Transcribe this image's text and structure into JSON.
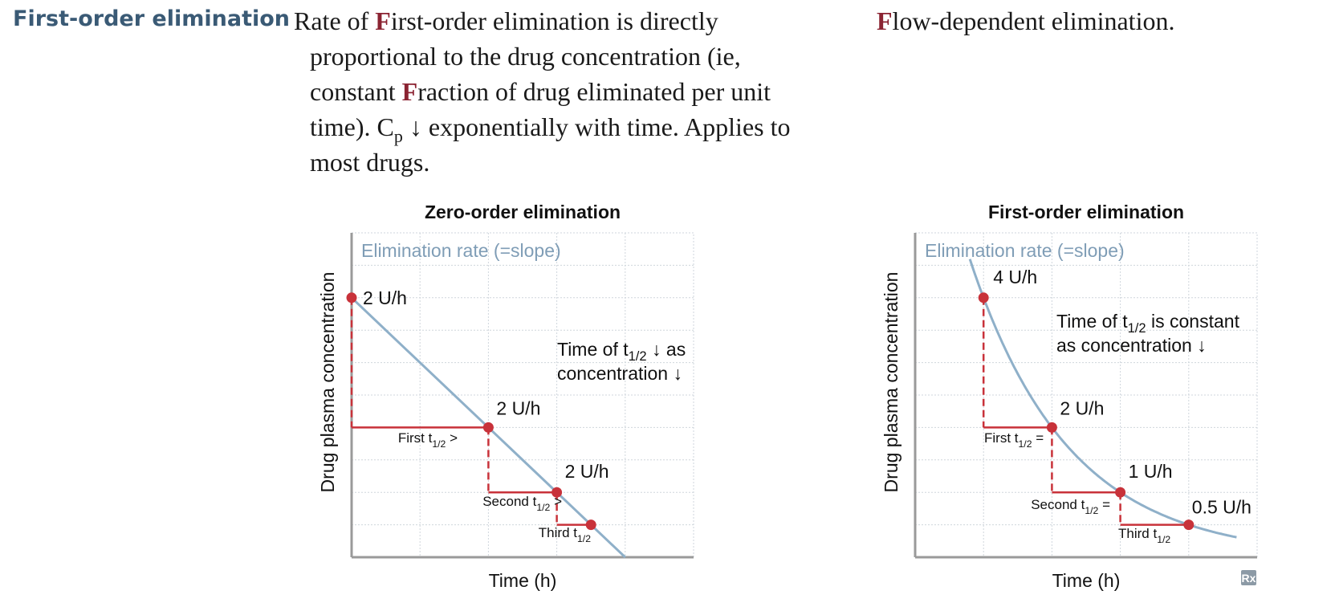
{
  "entry": {
    "term": "First-order elimination",
    "description": {
      "p1": "Rate of ",
      "f1": "F",
      "p2": "irst-order elimination is directly proportional to the drug concentration (ie, constant ",
      "f2": "F",
      "p3": "raction of drug eliminated per unit time). C",
      "p_sub": "p",
      "p4": " ↓ exponentially with time. Applies to most drugs."
    },
    "mnemonic": {
      "f": "F",
      "rest": "low-dependent elimination."
    }
  },
  "colors": {
    "curve": "#8fb0c9",
    "marker": "#c8323a",
    "grid": "#cfd6dc",
    "axis": "#9a9a9a",
    "term": "#3a5a75",
    "highlight": "#8b2332"
  },
  "badge": {
    "icon": "rx-logo-icon",
    "text": "Rx"
  },
  "chart_data": [
    {
      "type": "line",
      "title": "Zero-order elimination",
      "xlabel": "Time (h)",
      "ylabel": "Drug plasma concentration",
      "grid": true,
      "annotation_title": "Elimination rate (=slope)",
      "note_lines": [
        "Time of t1/2 ↓ as",
        "concentration ↓"
      ],
      "x": [
        0,
        4,
        6,
        7
      ],
      "y": [
        8,
        4,
        2,
        1
      ],
      "xlim": [
        0,
        10
      ],
      "ylim": [
        0,
        10
      ],
      "points": [
        {
          "x": 0,
          "y": 8,
          "rate": "2 U/h"
        },
        {
          "x": 4,
          "y": 4,
          "rate": "2 U/h"
        },
        {
          "x": 6,
          "y": 2,
          "rate": "2 U/h"
        },
        {
          "x": 7,
          "y": 1,
          "rate": ""
        }
      ],
      "half_lives": [
        {
          "base": "First t",
          "sub": "1/2",
          "suffix": " >"
        },
        {
          "base": "Second t",
          "sub": "1/2",
          "suffix": " >"
        },
        {
          "base": "Third t",
          "sub": "1/2",
          "suffix": ""
        }
      ]
    },
    {
      "type": "line",
      "title": "First-order elimination",
      "xlabel": "Time (h)",
      "ylabel": "Drug plasma concentration",
      "grid": true,
      "annotation_title": "Elimination rate (=slope)",
      "note_lines": [
        "Time of t1/2 is constant",
        "as concentration ↓"
      ],
      "x": [
        2,
        4,
        6,
        8
      ],
      "y": [
        8,
        4,
        2,
        1
      ],
      "xlim": [
        0,
        10
      ],
      "ylim": [
        0,
        10
      ],
      "points": [
        {
          "x": 2,
          "y": 8,
          "rate": "4 U/h"
        },
        {
          "x": 4,
          "y": 4,
          "rate": "2 U/h"
        },
        {
          "x": 6,
          "y": 2,
          "rate": "1 U/h"
        },
        {
          "x": 8,
          "y": 1,
          "rate": "0.5 U/h"
        }
      ],
      "half_lives": [
        {
          "base": "First t",
          "sub": "1/2",
          "suffix": " ="
        },
        {
          "base": "Second t",
          "sub": "1/2",
          "suffix": " ="
        },
        {
          "base": "Third t",
          "sub": "1/2",
          "suffix": ""
        }
      ]
    }
  ]
}
